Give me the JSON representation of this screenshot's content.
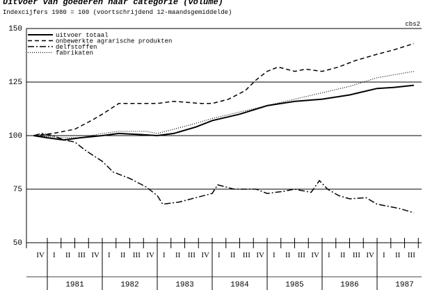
{
  "chart_data": {
    "type": "line",
    "title": "Uitvoer van goederen naar categorie (volume)",
    "subtitle": "Indexcijfers 1980 = 100 (voortschrijdend 12-maandsgemiddelde)",
    "annotation": "cbs2",
    "xlim": [
      1980.62,
      1987.81
    ],
    "ylim": [
      50,
      150
    ],
    "yticks": [
      50,
      75,
      100,
      125,
      150
    ],
    "grid": true,
    "legend": "upper left",
    "xticks": [
      {
        "value": 1980.875,
        "label": "IV"
      },
      {
        "value": 1981.125,
        "label": "I"
      },
      {
        "value": 1981.375,
        "label": "II"
      },
      {
        "value": 1981.625,
        "label": "III"
      },
      {
        "value": 1981.875,
        "label": "IV"
      },
      {
        "value": 1982.125,
        "label": "I"
      },
      {
        "value": 1982.375,
        "label": "II"
      },
      {
        "value": 1982.625,
        "label": "III"
      },
      {
        "value": 1982.875,
        "label": "IV"
      },
      {
        "value": 1983.125,
        "label": "I"
      },
      {
        "value": 1983.375,
        "label": "II"
      },
      {
        "value": 1983.625,
        "label": "III"
      },
      {
        "value": 1983.875,
        "label": "IV"
      },
      {
        "value": 1984.125,
        "label": "I"
      },
      {
        "value": 1984.375,
        "label": "II"
      },
      {
        "value": 1984.625,
        "label": "III"
      },
      {
        "value": 1984.875,
        "label": "IV"
      },
      {
        "value": 1985.125,
        "label": "I"
      },
      {
        "value": 1985.375,
        "label": "II"
      },
      {
        "value": 1985.625,
        "label": "III"
      },
      {
        "value": 1985.875,
        "label": "IV"
      },
      {
        "value": 1986.125,
        "label": "I"
      },
      {
        "value": 1986.375,
        "label": "II"
      },
      {
        "value": 1986.625,
        "label": "III"
      },
      {
        "value": 1986.875,
        "label": "IV"
      },
      {
        "value": 1987.125,
        "label": "I"
      },
      {
        "value": 1987.375,
        "label": "II"
      },
      {
        "value": 1987.625,
        "label": "III"
      }
    ],
    "year_ticks": [
      {
        "value": 1981.5,
        "label": "1981"
      },
      {
        "value": 1982.5,
        "label": "1982"
      },
      {
        "value": 1983.5,
        "label": "1983"
      },
      {
        "value": 1984.5,
        "label": "1984"
      },
      {
        "value": 1985.5,
        "label": "1985"
      },
      {
        "value": 1986.5,
        "label": "1986"
      },
      {
        "value": 1987.5,
        "label": "1987"
      }
    ],
    "series": [
      {
        "name": "uitvoer totaal",
        "color": "#000000",
        "style": "solid",
        "x": [
          1980.75,
          1981.0,
          1981.3,
          1981.6,
          1982.0,
          1982.3,
          1982.7,
          1983.0,
          1983.3,
          1983.7,
          1984.0,
          1984.5,
          1985.0,
          1985.5,
          1986.0,
          1986.5,
          1987.0,
          1987.3,
          1987.67
        ],
        "values": [
          100,
          99,
          98,
          99,
          100,
          101,
          100.5,
          100,
          101,
          104,
          107,
          110,
          114,
          116,
          117,
          119,
          122,
          122.5,
          123.5
        ]
      },
      {
        "name": "onbewerkte agrarische produkten",
        "color": "#000000",
        "style": "dashed",
        "x": [
          1980.75,
          1981.1,
          1981.5,
          1981.8,
          1982.0,
          1982.3,
          1983.0,
          1983.3,
          1983.8,
          1984.0,
          1984.3,
          1984.6,
          1984.8,
          1985.0,
          1985.2,
          1985.5,
          1985.7,
          1986.0,
          1986.3,
          1986.6,
          1987.0,
          1987.3,
          1987.67
        ],
        "values": [
          100,
          101,
          103,
          107,
          110,
          115,
          115,
          116,
          115,
          115,
          117,
          121,
          126,
          130,
          132,
          130,
          131,
          130,
          132,
          135,
          138,
          140,
          143
        ]
      },
      {
        "name": "delfstoffen",
        "color": "#000000",
        "style": "dashdot",
        "x": [
          1980.75,
          1980.9,
          1981.1,
          1981.3,
          1981.5,
          1981.7,
          1982.0,
          1982.2,
          1982.5,
          1982.8,
          1983.0,
          1983.1,
          1983.4,
          1983.7,
          1984.0,
          1984.1,
          1984.4,
          1984.8,
          1985.0,
          1985.3,
          1985.5,
          1985.8,
          1985.95,
          1986.1,
          1986.3,
          1986.5,
          1986.8,
          1987.0,
          1987.2,
          1987.4,
          1987.67
        ],
        "values": [
          100,
          101,
          100,
          98,
          97,
          93,
          88,
          83,
          80,
          76,
          72,
          68,
          69,
          71,
          73,
          77,
          75,
          75,
          73,
          74,
          75,
          73.5,
          79,
          75,
          72,
          70.5,
          71,
          68,
          67,
          66,
          64
        ]
      },
      {
        "name": "fabrikaten",
        "color": "#000000",
        "style": "dotted",
        "x": [
          1980.75,
          1981.3,
          1981.6,
          1982.0,
          1982.3,
          1982.8,
          1983.0,
          1983.3,
          1983.6,
          1984.0,
          1984.5,
          1985.0,
          1985.5,
          1986.0,
          1986.5,
          1987.0,
          1987.67
        ],
        "values": [
          100,
          99,
          99,
          101,
          102,
          102,
          101,
          103,
          105,
          108,
          111,
          114,
          117,
          120,
          123,
          127,
          130
        ]
      }
    ]
  }
}
